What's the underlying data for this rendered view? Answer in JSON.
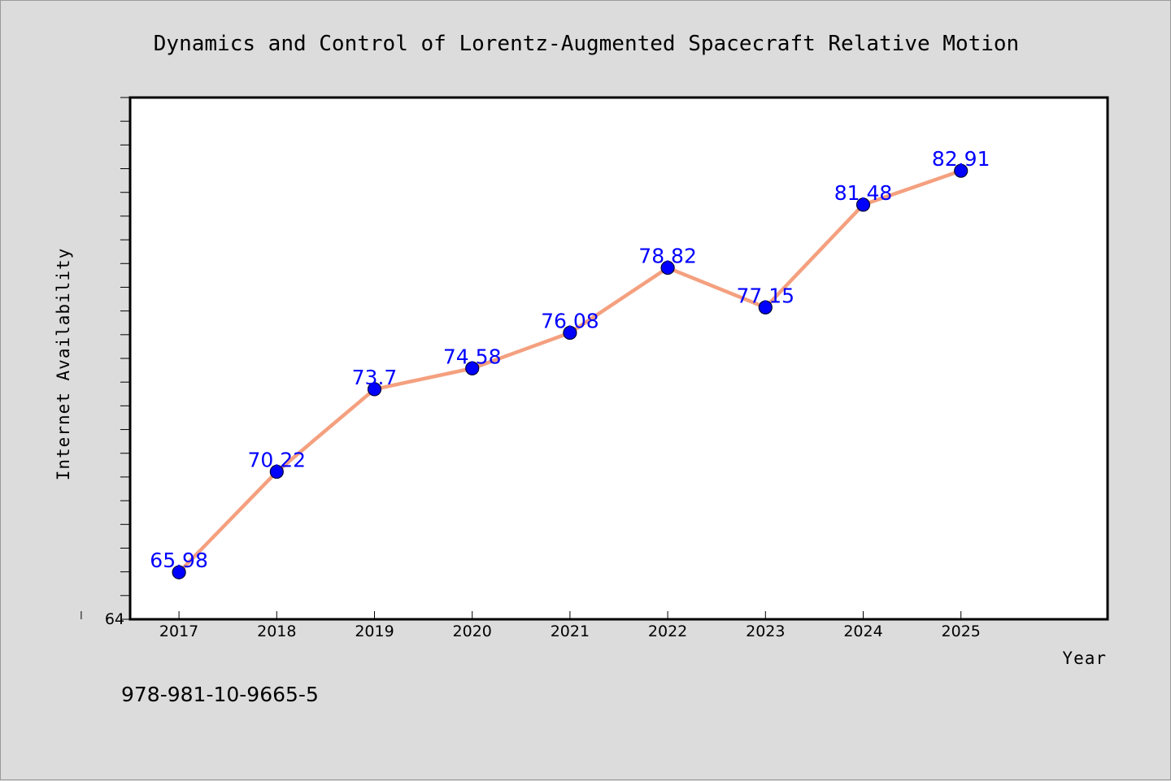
{
  "footer_text": "978-981-10-9665-5",
  "chart_data": {
    "type": "line",
    "title": "Dynamics and Control of Lorentz-Augmented Spacecraft Relative Motion",
    "xlabel": "Year",
    "ylabel": "Internet Availability",
    "categories": [
      "2017",
      "2018",
      "2019",
      "2020",
      "2021",
      "2022",
      "2023",
      "2024",
      "2025"
    ],
    "values": [
      65.98,
      70.22,
      73.7,
      74.58,
      76.08,
      78.82,
      77.15,
      81.48,
      82.91
    ],
    "data_labels": [
      "65.98",
      "70.22",
      "73.7",
      "74.58",
      "76.08",
      "78.82",
      "77.15",
      "81.48",
      "82.91"
    ],
    "y_tick_label": "64",
    "ylim": [
      64,
      86
    ],
    "grid": false,
    "legend": "none",
    "line_color": "#f4a07f",
    "marker_color": "#0000ff",
    "label_color": "#0000ff"
  }
}
